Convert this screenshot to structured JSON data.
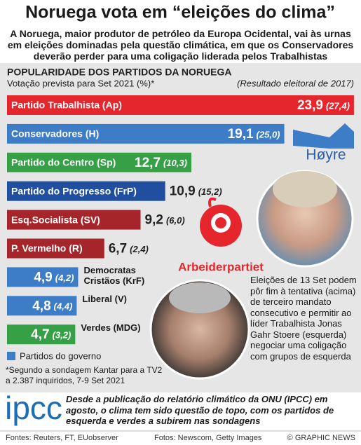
{
  "header": {
    "title": "Noruega vota em “eleições do clima”",
    "subtitle": "A Noruega, maior produtor de petróleo da Europa Ocidental, vai às urnas em eleições dominadas pela questão climática, em que os Conservadores deverão perder para uma coligação liderada pelos Trabalhistas"
  },
  "chart_data": {
    "type": "bar",
    "orientation": "horizontal",
    "title": "POPULARIDADE DOS PARTIDOS DA NORUEGA",
    "subtitle": "Votação prevista para Set 2021 (%)*",
    "note": "(Resultado eleitoral de 2017)",
    "categories": [
      "Partido Trabalhista (Ap)",
      "Conservadores (H)",
      "Partido do Centro (Sp)",
      "Partido do Progresso (FrP)",
      "Esq.Socialista (SV)",
      "P. Vermelho (R)",
      "Democratas Cristãos (KrF)",
      "Liberal (V)",
      "Verdes (MDG)"
    ],
    "values": [
      23.9,
      19.1,
      12.7,
      10.9,
      9.2,
      6.7,
      4.9,
      4.8,
      4.7
    ],
    "value_labels": [
      "23,9",
      "19,1",
      "12,7",
      "10,9",
      "9,2",
      "6,7",
      "4,9",
      "4,8",
      "4,7"
    ],
    "previous": [
      27.4,
      25.0,
      10.3,
      15.2,
      6.0,
      2.4,
      4.2,
      4.4,
      3.2
    ],
    "previous_labels": [
      "(27,4)",
      "(25,0)",
      "(10,3)",
      "(15,2)",
      "(6,0)",
      "(2,4)",
      "(4,2)",
      "(4,4)",
      "(3,2)"
    ],
    "colors": [
      "#e5262d",
      "#3d7dc8",
      "#36a047",
      "#1f4f9e",
      "#a5252a",
      "#a5252a",
      "#3d7dc8",
      "#3d7dc8",
      "#36a047"
    ],
    "xlim": [
      0,
      24
    ],
    "legend": {
      "label": "Partidos do governo",
      "color": "#3d7dc8"
    },
    "footnote": "*Segundo a sondagem Kantar para a TV2 a 2.387 inquiridos, 7-9 Set 2021"
  },
  "logos": {
    "hoyre": "Høyre",
    "ap": "Arbeiderpartiet",
    "ipcc": "ipcc"
  },
  "caption": "Eleições de 13 Set podem pôr fim à tentativa (acima) de terceiro mandato consecutivo e permitir ao líder Trabalhista Jonas Gahr Stoere (esquerda) negociar uma coligação com grupos de esquerda",
  "ipcc_text": "Desde a publicação do relatório climático da ONU (IPCC) em agosto, o clima tem sido questão de topo, com os partidos de esquerda e verdes a subirem nas sondagens",
  "footer": {
    "sources": "Fontes: Reuters, FT, EUobserver",
    "photos": "Fotos: Newscom, Getty Images",
    "copyright": "© GRAPHIC NEWS"
  }
}
